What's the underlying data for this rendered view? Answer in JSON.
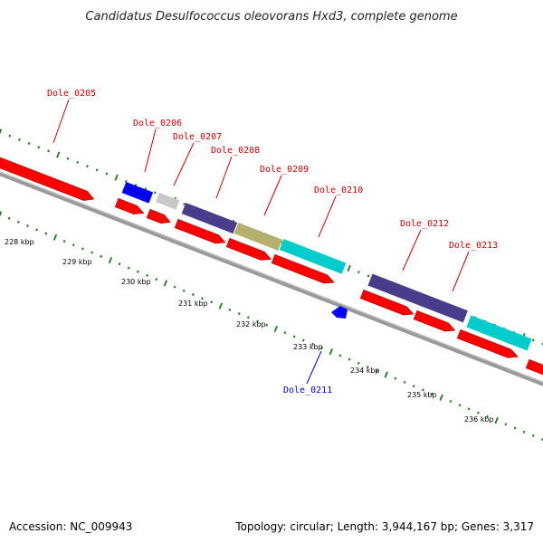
{
  "title": "Candidatus Desulfococcus oleovorans Hxd3, complete genome",
  "footer": {
    "accession": "Accession: NC_009943",
    "topology": "Topology: circular; Length: 3,944,167 bp; Genes: 3,317"
  },
  "colors": {
    "forward_cds": "#ff0000",
    "reverse_cds": "#0000ff",
    "tick": "#1a7a1a",
    "backbone": "#808080",
    "label_forward": "#cc0000",
    "label_reverse": "#0000cc"
  },
  "kbp_labels": [
    "228 kbp",
    "229 kbp",
    "230 kbp",
    "231 kbp",
    "232 kbp",
    "233 kbp",
    "234 kbp",
    "235 kbp",
    "236 kbp"
  ],
  "gene_labels": [
    {
      "id": "Dole_0205",
      "strand": "forward"
    },
    {
      "id": "Dole_0206",
      "strand": "forward"
    },
    {
      "id": "Dole_0207",
      "strand": "forward"
    },
    {
      "id": "Dole_0208",
      "strand": "forward"
    },
    {
      "id": "Dole_0209",
      "strand": "forward"
    },
    {
      "id": "Dole_0210",
      "strand": "forward"
    },
    {
      "id": "Dole_0212",
      "strand": "forward"
    },
    {
      "id": "Dole_0213",
      "strand": "forward"
    },
    {
      "id": "Dole_0211",
      "strand": "reverse"
    }
  ],
  "feature_colors": {
    "Dole_0206": "#0000ee",
    "Dole_0207": "#c8c8c8",
    "Dole_0208": "#483d8b",
    "Dole_0209": "#b5b06e",
    "Dole_0210": "#00cccc",
    "Dole_0212": "#483d8b",
    "Dole_0213": "#00cccc"
  }
}
